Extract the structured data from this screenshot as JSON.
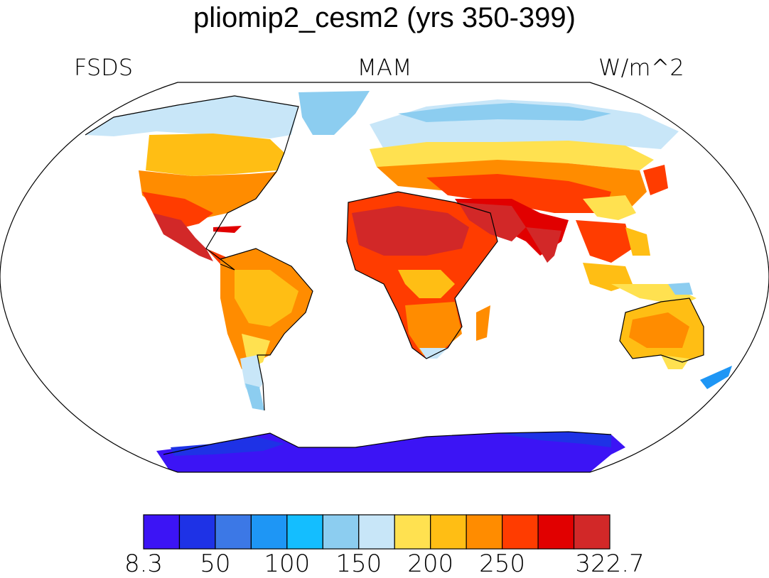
{
  "title": "pliomip2_cesm2 (yrs 350-399)",
  "left_label": "FSDS",
  "center_label": "MAM",
  "right_label": "W/m^2",
  "colorbar": {
    "colors": [
      "#3c14f5",
      "#1e32e6",
      "#3c78e6",
      "#1e96f5",
      "#14beff",
      "#8ccdf0",
      "#c8e6f8",
      "#ffe150",
      "#ffbe14",
      "#ff8c00",
      "#ff3c00",
      "#e10000",
      "#d22828"
    ],
    "tick_labels": [
      "8.3",
      "50",
      "100",
      "150",
      "200",
      "250",
      "322.7"
    ]
  },
  "map": {
    "projection": "Robinson",
    "land_color_scale": "FSDS shortwave flux, MAM mean"
  }
}
